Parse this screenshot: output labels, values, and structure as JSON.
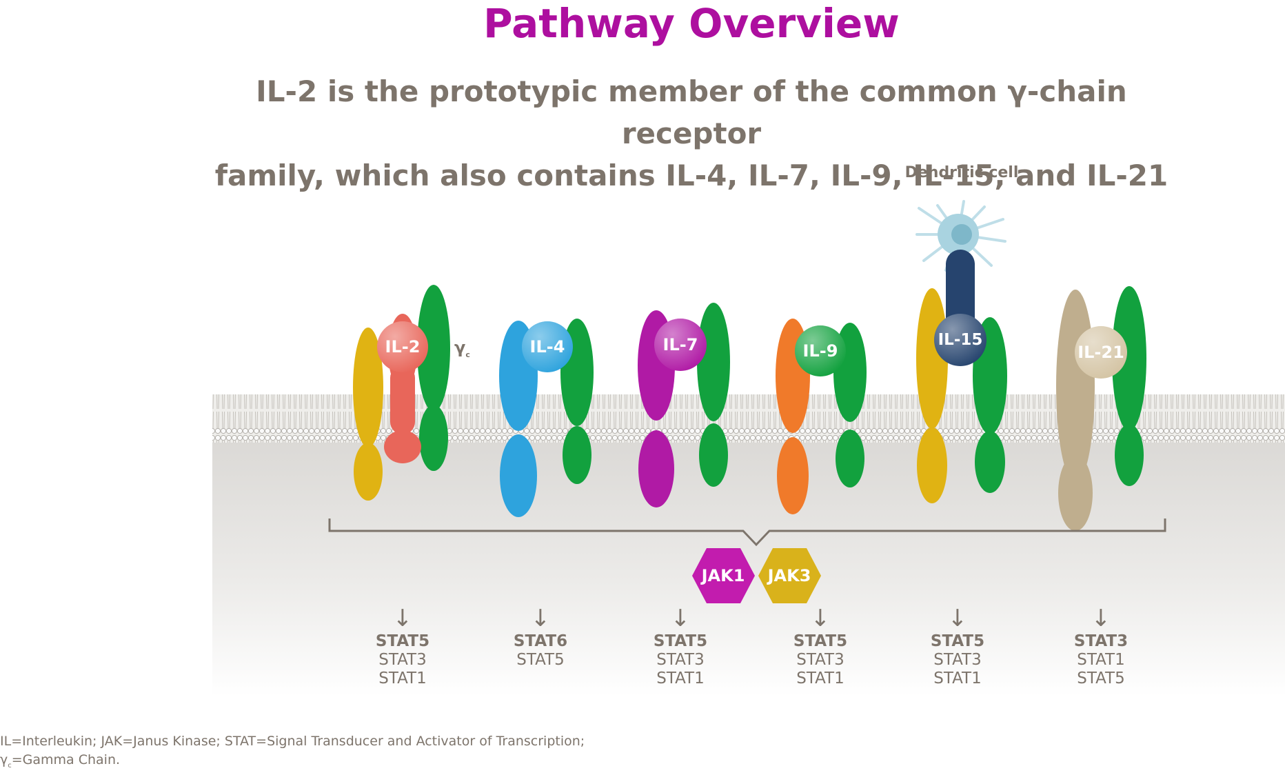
{
  "title": "Pathway Overview",
  "subtitle_line1": "IL-2 is the prototypic member of the common γ-chain receptor",
  "subtitle_line2": "family, which also contains IL-4, IL-7, IL-9, IL-15, and IL-21",
  "dendritic_label": "Dendritic cell",
  "gamma_label": "γ",
  "gamma_sub": "c",
  "colors": {
    "title": "#ad0f9f",
    "text": "#7d746b",
    "yellow": "#e0b313",
    "green": "#12a13e",
    "red": "#e8665a",
    "blue": "#2ea3dd",
    "purple": "#b01aa5",
    "orange": "#f07a2a",
    "navy": "#26446e",
    "tan": "#bfae8e",
    "jak1": "#c21cae",
    "jak3": "#d9b21b"
  },
  "receptors": [
    {
      "label": "IL-2",
      "stats": {
        "primary": "STAT5",
        "others": [
          "STAT3",
          "STAT1"
        ]
      }
    },
    {
      "label": "IL-4",
      "stats": {
        "primary": "STAT6",
        "others": [
          "STAT5"
        ]
      }
    },
    {
      "label": "IL-7",
      "stats": {
        "primary": "STAT5",
        "others": [
          "STAT3",
          "STAT1"
        ]
      }
    },
    {
      "label": "IL-9",
      "stats": {
        "primary": "STAT5",
        "others": [
          "STAT3",
          "STAT1"
        ]
      }
    },
    {
      "label": "IL-15",
      "stats": {
        "primary": "STAT5",
        "others": [
          "STAT3",
          "STAT1"
        ]
      }
    },
    {
      "label": "IL-21",
      "stats": {
        "primary": "STAT3",
        "others": [
          "STAT1",
          "STAT5"
        ]
      }
    }
  ],
  "jak": [
    "JAK1",
    "JAK3"
  ],
  "arrow": "↓",
  "footnote_line1": "IL=Interleukin; JAK=Janus Kinase; STAT=Signal Transducer and Activator of Transcription;",
  "footnote_line2_sym": "γ",
  "footnote_line2_sub": "c",
  "footnote_line2_rest": "=Gamma Chain."
}
